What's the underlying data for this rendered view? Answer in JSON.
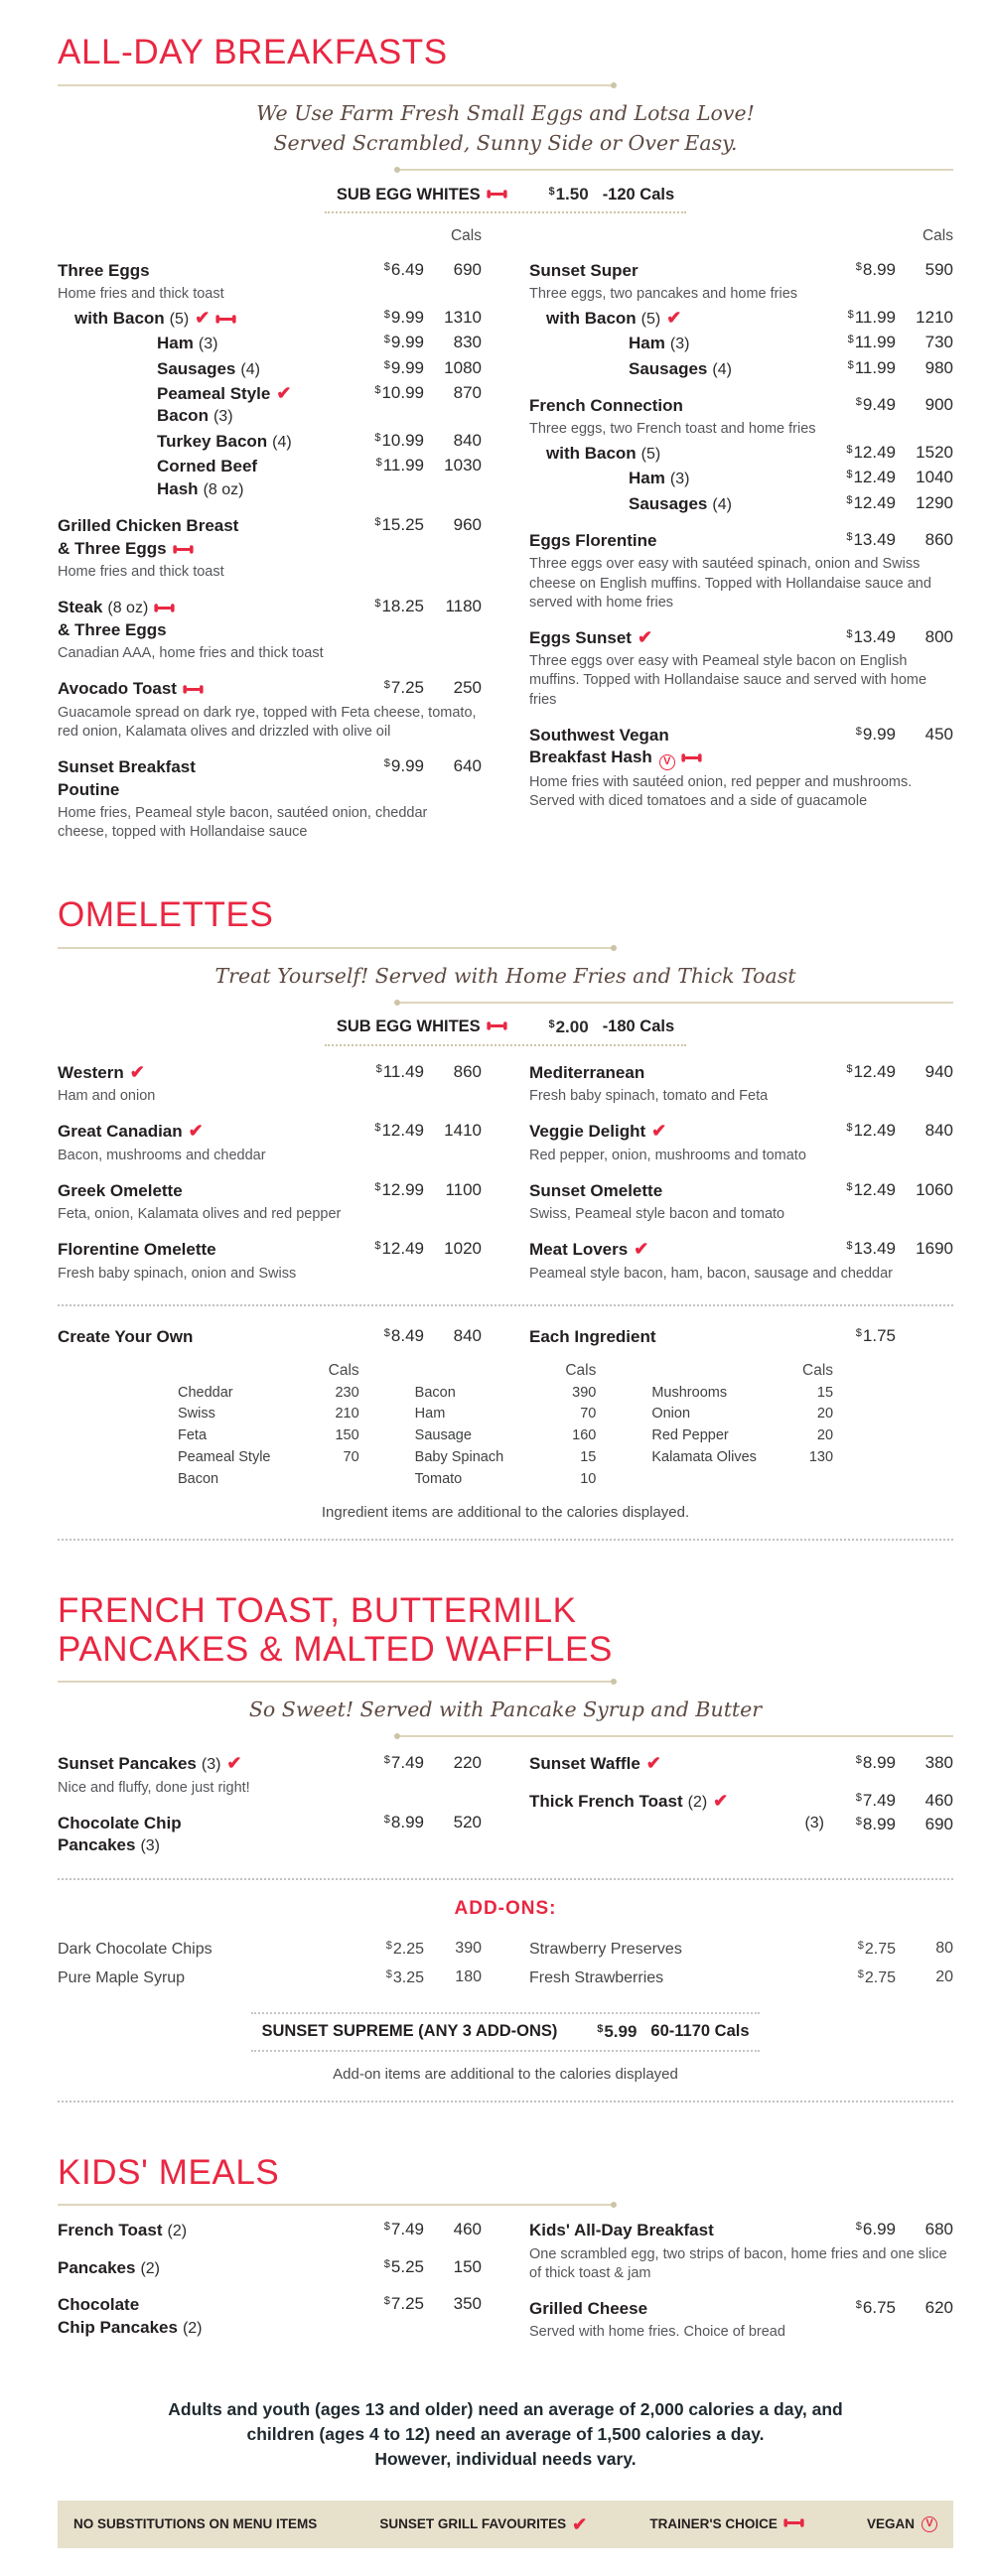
{
  "currency": "$",
  "labels": {
    "cals": "Cals"
  },
  "colors": {
    "red": "#e92742",
    "text": "#231f20",
    "gray": "#55565a",
    "brown": "#5d4a42",
    "rule": "#ddd6bd",
    "dotted": "#c2c2c2",
    "legend_bg": "#e7e0cb",
    "banner_dot": "#cdc5a7"
  },
  "sections": [
    {
      "id": "breakfasts",
      "title": "ALL-DAY BREAKFASTS",
      "subtitle": "We Use Farm Fresh Small Eggs and Lotsa Love!\nServed Scrambled, Sunny Side or Over Easy.",
      "banner": {
        "label": "SUB EGG WHITES",
        "icon": "dumbbell",
        "price": "1.50",
        "note": "-120 Cals"
      },
      "cals_header": true,
      "columns": [
        [
          {
            "lines": [
              {
                "text": "Three Eggs"
              }
            ],
            "price": "6.49",
            "cals": "690",
            "desc": "Home fries and thick toast"
          },
          {
            "indent": 1,
            "lines": [
              {
                "text": "with Bacon",
                "qty": "(5)",
                "icons": [
                  "check",
                  "dumbbell"
                ]
              }
            ],
            "price": "9.99",
            "cals": "1310"
          },
          {
            "indent": 2,
            "lines": [
              {
                "text": "Ham",
                "qty": "(3)"
              }
            ],
            "price": "9.99",
            "cals": "830"
          },
          {
            "indent": 2,
            "lines": [
              {
                "text": "Sausages",
                "qty": "(4)"
              }
            ],
            "price": "9.99",
            "cals": "1080"
          },
          {
            "indent": 2,
            "lines": [
              {
                "text": "Peameal Style",
                "icons": [
                  "check"
                ]
              },
              {
                "text": "Bacon",
                "qty": "(3)"
              }
            ],
            "price": "10.99",
            "cals": "870"
          },
          {
            "indent": 2,
            "lines": [
              {
                "text": "Turkey Bacon",
                "qty": "(4)"
              }
            ],
            "price": "10.99",
            "cals": "840"
          },
          {
            "indent": 2,
            "lines": [
              {
                "text": "Corned Beef"
              },
              {
                "text": "Hash",
                "qty": "(8 oz)"
              }
            ],
            "price": "11.99",
            "cals": "1030"
          },
          {
            "lines": [
              {
                "text": "Grilled Chicken Breast"
              },
              {
                "text": "& Three Eggs",
                "icons": [
                  "dumbbell"
                ]
              }
            ],
            "price": "15.25",
            "cals": "960",
            "desc": "Home fries and thick toast"
          },
          {
            "lines": [
              {
                "text": "Steak",
                "qty": "(8 oz)",
                "icons": [
                  "dumbbell"
                ]
              },
              {
                "text": "& Three Eggs"
              }
            ],
            "price": "18.25",
            "cals": "1180",
            "desc": "Canadian AAA, home fries and thick toast"
          },
          {
            "lines": [
              {
                "text": "Avocado Toast",
                "icons": [
                  "dumbbell"
                ]
              }
            ],
            "price": "7.25",
            "cals": "250",
            "desc": "Guacamole spread on dark rye, topped with Feta cheese, tomato, red onion, Kalamata olives and drizzled with olive oil"
          },
          {
            "lines": [
              {
                "text": "Sunset Breakfast"
              },
              {
                "text": "Poutine"
              }
            ],
            "price": "9.99",
            "cals": "640",
            "desc": "Home fries, Peameal style bacon, sautéed onion, cheddar cheese, topped with Hollandaise sauce"
          }
        ],
        [
          {
            "lines": [
              {
                "text": "Sunset Super"
              }
            ],
            "price": "8.99",
            "cals": "590",
            "desc": "Three eggs, two pancakes and home fries"
          },
          {
            "indent": 1,
            "lines": [
              {
                "text": "with Bacon",
                "qty": "(5)",
                "icons": [
                  "check"
                ]
              }
            ],
            "price": "11.99",
            "cals": "1210"
          },
          {
            "indent": 2,
            "lines": [
              {
                "text": "Ham",
                "qty": "(3)"
              }
            ],
            "price": "11.99",
            "cals": "730"
          },
          {
            "indent": 2,
            "lines": [
              {
                "text": "Sausages",
                "qty": "(4)"
              }
            ],
            "price": "11.99",
            "cals": "980"
          },
          {
            "lines": [
              {
                "text": "French Connection"
              }
            ],
            "price": "9.49",
            "cals": "900",
            "desc": "Three eggs, two French toast and home fries"
          },
          {
            "indent": 1,
            "lines": [
              {
                "text": "with Bacon",
                "qty": "(5)"
              }
            ],
            "price": "12.49",
            "cals": "1520"
          },
          {
            "indent": 2,
            "lines": [
              {
                "text": "Ham",
                "qty": "(3)"
              }
            ],
            "price": "12.49",
            "cals": "1040"
          },
          {
            "indent": 2,
            "lines": [
              {
                "text": "Sausages",
                "qty": "(4)"
              }
            ],
            "price": "12.49",
            "cals": "1290"
          },
          {
            "lines": [
              {
                "text": "Eggs Florentine"
              }
            ],
            "price": "13.49",
            "cals": "860",
            "desc": "Three eggs over easy with sautéed spinach, onion and Swiss cheese on English muffins. Topped with Hollandaise sauce and served with home fries"
          },
          {
            "lines": [
              {
                "text": "Eggs Sunset",
                "icons": [
                  "check"
                ]
              }
            ],
            "price": "13.49",
            "cals": "800",
            "desc": "Three eggs over easy with Peameal style bacon on English muffins. Topped with Hollandaise sauce and served with home fries"
          },
          {
            "lines": [
              {
                "text": "Southwest Vegan"
              },
              {
                "text": "Breakfast Hash",
                "icons": [
                  "vegan",
                  "dumbbell"
                ]
              }
            ],
            "price": "9.99",
            "cals": "450",
            "desc": "Home fries with sautéed onion, red pepper and mushrooms. Served with diced tomatoes and a side of guacamole"
          }
        ]
      ]
    },
    {
      "id": "omelettes",
      "title": "OMELETTES",
      "subtitle": "Treat Yourself! Served with Home Fries and Thick Toast",
      "banner": {
        "label": "SUB EGG WHITES",
        "icon": "dumbbell",
        "price": "2.00",
        "note": "-180 Cals"
      },
      "columns": [
        [
          {
            "lines": [
              {
                "text": "Western",
                "icons": [
                  "check"
                ]
              }
            ],
            "price": "11.49",
            "cals": "860",
            "desc": "Ham and onion"
          },
          {
            "lines": [
              {
                "text": "Great Canadian",
                "icons": [
                  "check"
                ]
              }
            ],
            "price": "12.49",
            "cals": "1410",
            "desc": "Bacon, mushrooms and cheddar"
          },
          {
            "lines": [
              {
                "text": "Greek Omelette"
              }
            ],
            "price": "12.99",
            "cals": "1100",
            "desc": "Feta, onion, Kalamata olives and red pepper"
          },
          {
            "lines": [
              {
                "text": "Florentine Omelette"
              }
            ],
            "price": "12.49",
            "cals": "1020",
            "desc": "Fresh baby spinach, onion and Swiss"
          }
        ],
        [
          {
            "lines": [
              {
                "text": "Mediterranean"
              }
            ],
            "price": "12.49",
            "cals": "940",
            "desc": "Fresh baby spinach, tomato and Feta"
          },
          {
            "lines": [
              {
                "text": "Veggie Delight",
                "icons": [
                  "check"
                ]
              }
            ],
            "price": "12.49",
            "cals": "840",
            "desc": "Red pepper, onion, mushrooms and tomato"
          },
          {
            "lines": [
              {
                "text": "Sunset Omelette"
              }
            ],
            "price": "12.49",
            "cals": "1060",
            "desc": "Swiss, Peameal style bacon and tomato"
          },
          {
            "lines": [
              {
                "text": "Meat Lovers",
                "icons": [
                  "check"
                ]
              }
            ],
            "price": "13.49",
            "cals": "1690",
            "desc": "Peameal style bacon, ham, bacon, sausage and cheddar"
          }
        ]
      ],
      "create_your_own": {
        "columns": [
          [
            {
              "lines": [
                {
                  "text": "Create Your Own"
                }
              ],
              "price": "8.49",
              "cals": "840"
            }
          ],
          [
            {
              "lines": [
                {
                  "text": "Each Ingredient"
                }
              ],
              "price": "1.75"
            }
          ]
        ],
        "ingredients": {
          "groups": [
            [
              {
                "name_lines": [
                  "Cheddar"
                ],
                "cals": "230"
              },
              {
                "name_lines": [
                  "Swiss"
                ],
                "cals": "210"
              },
              {
                "name_lines": [
                  "Feta"
                ],
                "cals": "150"
              },
              {
                "name_lines": [
                  "Peameal Style",
                  "Bacon"
                ],
                "cals": "70"
              }
            ],
            [
              {
                "name_lines": [
                  "Bacon"
                ],
                "cals": "390"
              },
              {
                "name_lines": [
                  "Ham"
                ],
                "cals": "70"
              },
              {
                "name_lines": [
                  "Sausage"
                ],
                "cals": "160"
              },
              {
                "name_lines": [
                  "Baby Spinach"
                ],
                "cals": "15"
              },
              {
                "name_lines": [
                  "Tomato"
                ],
                "cals": "10"
              }
            ],
            [
              {
                "name_lines": [
                  "Mushrooms"
                ],
                "cals": "15"
              },
              {
                "name_lines": [
                  "Onion"
                ],
                "cals": "20"
              },
              {
                "name_lines": [
                  "Red Pepper"
                ],
                "cals": "20"
              },
              {
                "name_lines": [
                  "Kalamata Olives"
                ],
                "cals": "130"
              }
            ]
          ],
          "note": "Ingredient items are additional to the calories displayed."
        }
      }
    },
    {
      "id": "pancakes",
      "title": "FRENCH TOAST, BUTTERMILK\nPANCAKES & MALTED WAFFLES",
      "subtitle": "So Sweet! Served with Pancake Syrup and Butter",
      "columns": [
        [
          {
            "lines": [
              {
                "text": "Sunset Pancakes",
                "qty": "(3)",
                "icons": [
                  "check"
                ]
              }
            ],
            "price": "7.49",
            "cals": "220",
            "desc": "Nice and fluffy, done just right!"
          },
          {
            "lines": [
              {
                "text": "Chocolate Chip"
              },
              {
                "text": "Pancakes",
                "qty": "(3)"
              }
            ],
            "price": "8.99",
            "cals": "520"
          }
        ],
        [
          {
            "lines": [
              {
                "text": "Sunset Waffle",
                "icons": [
                  "check"
                ]
              }
            ],
            "price": "8.99",
            "cals": "380"
          },
          {
            "lines": [
              {
                "text": "Thick French Toast",
                "qty": "(2)",
                "icons": [
                  "check"
                ]
              }
            ],
            "price": "7.49",
            "cals": "460",
            "extra_rows": [
              {
                "qty": "(3)",
                "price": "8.99",
                "cals": "690"
              }
            ]
          }
        ]
      ],
      "addons": {
        "heading": "ADD-ONS:",
        "columns": [
          [
            {
              "lines": [
                {
                  "text": "Dark Chocolate Chips"
                }
              ],
              "price": "2.25",
              "cals": "390"
            },
            {
              "lines": [
                {
                  "text": "Pure Maple Syrup"
                }
              ],
              "price": "3.25",
              "cals": "180"
            }
          ],
          [
            {
              "lines": [
                {
                  "text": "Strawberry Preserves"
                }
              ],
              "price": "2.75",
              "cals": "80"
            },
            {
              "lines": [
                {
                  "text": "Fresh Strawberries"
                }
              ],
              "price": "2.75",
              "cals": "20"
            }
          ]
        ],
        "supreme": {
          "label": "SUNSET SUPREME (ANY 3 ADD-ONS)",
          "price": "5.99",
          "note": "60-1170 Cals"
        },
        "note": "Add-on items are additional to the calories displayed"
      }
    },
    {
      "id": "kids",
      "title": "KIDS' MEALS",
      "columns": [
        [
          {
            "lines": [
              {
                "text": "French Toast",
                "qty": "(2)"
              }
            ],
            "price": "7.49",
            "cals": "460"
          },
          {
            "lines": [
              {
                "text": "Pancakes",
                "qty": "(2)"
              }
            ],
            "price": "5.25",
            "cals": "150"
          },
          {
            "lines": [
              {
                "text": "Chocolate"
              },
              {
                "text": "Chip Pancakes",
                "qty": "(2)"
              }
            ],
            "price": "7.25",
            "cals": "350"
          }
        ],
        [
          {
            "lines": [
              {
                "text": "Kids' All-Day Breakfast"
              }
            ],
            "price": "6.99",
            "cals": "680",
            "desc": "One scrambled egg, two strips of bacon, home fries and one slice of thick toast & jam"
          },
          {
            "lines": [
              {
                "text": "Grilled Cheese"
              }
            ],
            "price": "6.75",
            "cals": "620",
            "desc": "Served with home fries. Choice of bread"
          }
        ]
      ]
    }
  ],
  "footer": {
    "text": "Adults and youth (ages 13 and older) need an average of 2,000 calories a day, and\nchildren (ages 4 to 12) need an average of 1,500 calories a day.\nHowever, individual needs vary."
  },
  "legend": {
    "items": [
      {
        "label": "NO SUBSTITUTIONS ON MENU ITEMS"
      },
      {
        "label": "SUNSET GRILL FAVOURITES",
        "icon": "check"
      },
      {
        "label": "TRAINER'S CHOICE",
        "icon": "dumbbell"
      },
      {
        "label": "VEGAN",
        "icon": "vegan"
      }
    ]
  }
}
